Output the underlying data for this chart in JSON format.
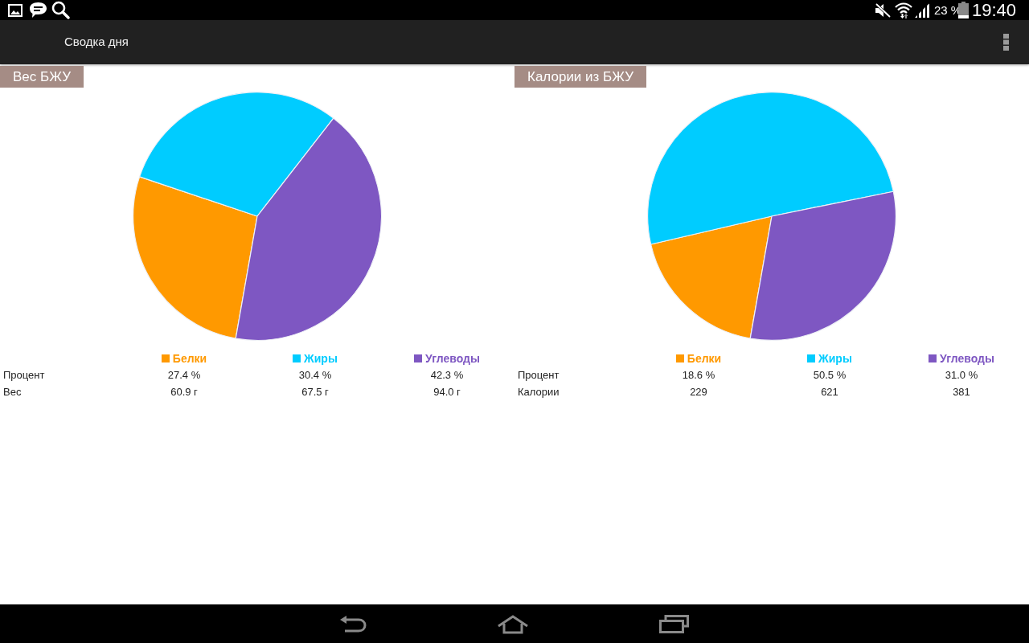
{
  "chart_data": [
    {
      "type": "other",
      "title": "Сводка дня",
      "annotations": [
        "23 %",
        "19:40"
      ]
    },
    {
      "type": "pie",
      "title": "Вес БЖУ",
      "categories": [
        "Белки",
        "Жиры",
        "Углеводы"
      ],
      "values": [
        27.4,
        30.4,
        42.3
      ],
      "colors": [
        "#ff9900",
        "#00ccff",
        "#7e57c2"
      ],
      "value_labels": [
        "27.4 %",
        "30.4 %",
        "42.3 %"
      ],
      "legend": "bottom",
      "annotations": [
        "Процент",
        "Вес",
        "60.9 г",
        "67.5 г",
        "94.0 г"
      ]
    },
    {
      "type": "pie",
      "title": "Калории из БЖУ",
      "categories": [
        "Белки",
        "Жиры",
        "Углеводы"
      ],
      "values": [
        18.6,
        50.5,
        31.0
      ],
      "colors": [
        "#ff9900",
        "#00ccff",
        "#7e57c2"
      ],
      "value_labels": [
        "18.6 %",
        "50.5 %",
        "31.0 %"
      ],
      "legend": "bottom",
      "annotations": [
        "Процент",
        "Калории",
        "229",
        "621",
        "381"
      ]
    }
  ]
}
